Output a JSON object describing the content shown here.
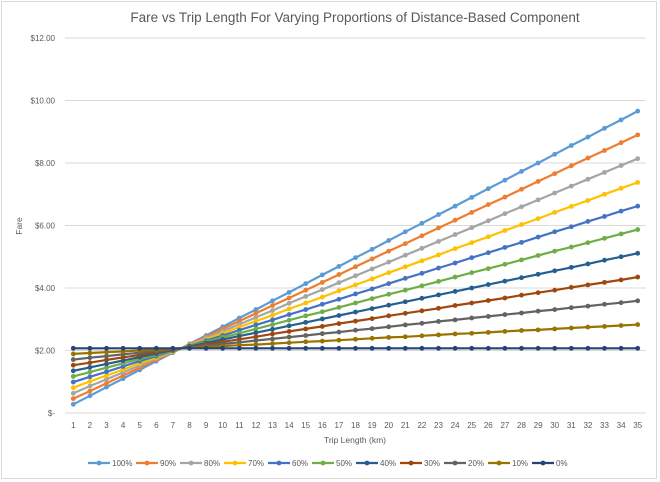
{
  "chart_data": {
    "type": "line",
    "title": "Fare vs Trip Length For Varying Proportions of Distance-Based Component",
    "xlabel": "Trip Length (km)",
    "ylabel": "Fare",
    "ylim": [
      0,
      12
    ],
    "yticks": [
      0,
      2,
      4,
      6,
      8,
      10,
      12
    ],
    "ytick_labels": [
      "$-",
      "$2.00",
      "$4.00",
      "$6.00",
      "$8.00",
      "$10.00",
      "$12.00"
    ],
    "grid": "horizontal",
    "legend_position": "bottom",
    "markers": true,
    "x": [
      1,
      2,
      3,
      4,
      5,
      6,
      7,
      8,
      9,
      10,
      11,
      12,
      13,
      14,
      15,
      16,
      17,
      18,
      19,
      20,
      21,
      22,
      23,
      24,
      25,
      26,
      27,
      28,
      29,
      30,
      31,
      32,
      33,
      34,
      35
    ],
    "series": [
      {
        "name": "100%",
        "color": "#5B9BD5",
        "values": [
          0.28,
          0.55,
          0.83,
          1.1,
          1.38,
          1.66,
          1.93,
          2.21,
          2.48,
          2.76,
          3.04,
          3.31,
          3.59,
          3.86,
          4.14,
          4.42,
          4.69,
          4.97,
          5.24,
          5.52,
          5.8,
          6.07,
          6.35,
          6.62,
          6.9,
          7.18,
          7.45,
          7.73,
          8.0,
          8.28,
          8.56,
          8.83,
          9.11,
          9.38,
          9.66
        ]
      },
      {
        "name": "90%",
        "color": "#ED7D31",
        "values": [
          0.46,
          0.7,
          0.95,
          1.2,
          1.45,
          1.7,
          1.95,
          2.19,
          2.44,
          2.69,
          2.94,
          3.19,
          3.44,
          3.68,
          3.93,
          4.18,
          4.43,
          4.68,
          4.93,
          5.18,
          5.42,
          5.67,
          5.92,
          6.17,
          6.42,
          6.67,
          6.91,
          7.16,
          7.41,
          7.66,
          7.91,
          8.16,
          8.4,
          8.65,
          8.9
        ]
      },
      {
        "name": "80%",
        "color": "#A5A5A5",
        "values": [
          0.63,
          0.86,
          1.08,
          1.3,
          1.52,
          1.74,
          1.96,
          2.18,
          2.4,
          2.62,
          2.84,
          3.06,
          3.28,
          3.51,
          3.73,
          3.95,
          4.17,
          4.39,
          4.61,
          4.83,
          5.05,
          5.27,
          5.49,
          5.71,
          5.93,
          6.15,
          6.38,
          6.6,
          6.82,
          7.04,
          7.26,
          7.48,
          7.7,
          7.92,
          8.14
        ]
      },
      {
        "name": "70%",
        "color": "#FFC000",
        "values": [
          0.81,
          1.01,
          1.2,
          1.39,
          1.59,
          1.78,
          1.97,
          2.17,
          2.36,
          2.55,
          2.75,
          2.94,
          3.13,
          3.33,
          3.52,
          3.71,
          3.91,
          4.1,
          4.29,
          4.49,
          4.68,
          4.87,
          5.06,
          5.26,
          5.45,
          5.64,
          5.84,
          6.03,
          6.22,
          6.42,
          6.61,
          6.8,
          7.0,
          7.19,
          7.38
        ]
      },
      {
        "name": "60%",
        "color": "#4472C4",
        "values": [
          0.99,
          1.16,
          1.32,
          1.49,
          1.66,
          1.82,
          1.99,
          2.15,
          2.32,
          2.48,
          2.65,
          2.82,
          2.98,
          3.15,
          3.31,
          3.48,
          3.64,
          3.81,
          3.97,
          4.14,
          4.31,
          4.47,
          4.64,
          4.8,
          4.97,
          5.13,
          5.3,
          5.46,
          5.63,
          5.8,
          5.96,
          6.13,
          6.29,
          6.46,
          6.62
        ]
      },
      {
        "name": "50%",
        "color": "#70AD47",
        "values": [
          1.17,
          1.31,
          1.45,
          1.59,
          1.73,
          1.86,
          2.0,
          2.14,
          2.28,
          2.42,
          2.55,
          2.69,
          2.83,
          2.97,
          3.11,
          3.24,
          3.38,
          3.52,
          3.66,
          3.8,
          3.93,
          4.07,
          4.21,
          4.35,
          4.49,
          4.62,
          4.76,
          4.9,
          5.04,
          5.18,
          5.31,
          5.45,
          5.59,
          5.73,
          5.87
        ]
      },
      {
        "name": "40%",
        "color": "#255E91",
        "values": [
          1.35,
          1.46,
          1.57,
          1.68,
          1.79,
          1.9,
          2.01,
          2.13,
          2.24,
          2.35,
          2.46,
          2.57,
          2.68,
          2.79,
          2.9,
          3.01,
          3.12,
          3.23,
          3.34,
          3.45,
          3.56,
          3.67,
          3.78,
          3.89,
          4.0,
          4.11,
          4.22,
          4.33,
          4.44,
          4.55,
          4.66,
          4.77,
          4.89,
          5.0,
          5.11
        ]
      },
      {
        "name": "30%",
        "color": "#9E480E",
        "values": [
          1.53,
          1.61,
          1.7,
          1.78,
          1.86,
          1.95,
          2.03,
          2.11,
          2.19,
          2.28,
          2.36,
          2.44,
          2.53,
          2.61,
          2.69,
          2.77,
          2.86,
          2.94,
          3.02,
          3.11,
          3.19,
          3.27,
          3.35,
          3.44,
          3.52,
          3.6,
          3.68,
          3.77,
          3.85,
          3.93,
          4.02,
          4.1,
          4.18,
          4.26,
          4.35
        ]
      },
      {
        "name": "20%",
        "color": "#636363",
        "values": [
          1.71,
          1.77,
          1.82,
          1.88,
          1.93,
          1.99,
          2.04,
          2.1,
          2.15,
          2.21,
          2.26,
          2.32,
          2.37,
          2.43,
          2.48,
          2.54,
          2.59,
          2.65,
          2.7,
          2.76,
          2.82,
          2.87,
          2.93,
          2.98,
          3.04,
          3.09,
          3.15,
          3.2,
          3.26,
          3.31,
          3.37,
          3.42,
          3.48,
          3.53,
          3.59
        ]
      },
      {
        "name": "10%",
        "color": "#997300",
        "values": [
          1.89,
          1.92,
          1.95,
          1.97,
          2.0,
          2.03,
          2.06,
          2.08,
          2.11,
          2.14,
          2.17,
          2.19,
          2.22,
          2.25,
          2.28,
          2.3,
          2.33,
          2.36,
          2.39,
          2.42,
          2.44,
          2.47,
          2.5,
          2.53,
          2.55,
          2.58,
          2.61,
          2.64,
          2.66,
          2.69,
          2.72,
          2.75,
          2.77,
          2.8,
          2.83
        ]
      },
      {
        "name": "0%",
        "color": "#264478",
        "values": [
          2.07,
          2.07,
          2.07,
          2.07,
          2.07,
          2.07,
          2.07,
          2.07,
          2.07,
          2.07,
          2.07,
          2.07,
          2.07,
          2.07,
          2.07,
          2.07,
          2.07,
          2.07,
          2.07,
          2.07,
          2.07,
          2.07,
          2.07,
          2.07,
          2.07,
          2.07,
          2.07,
          2.07,
          2.07,
          2.07,
          2.07,
          2.07,
          2.07,
          2.07,
          2.07
        ]
      }
    ]
  }
}
